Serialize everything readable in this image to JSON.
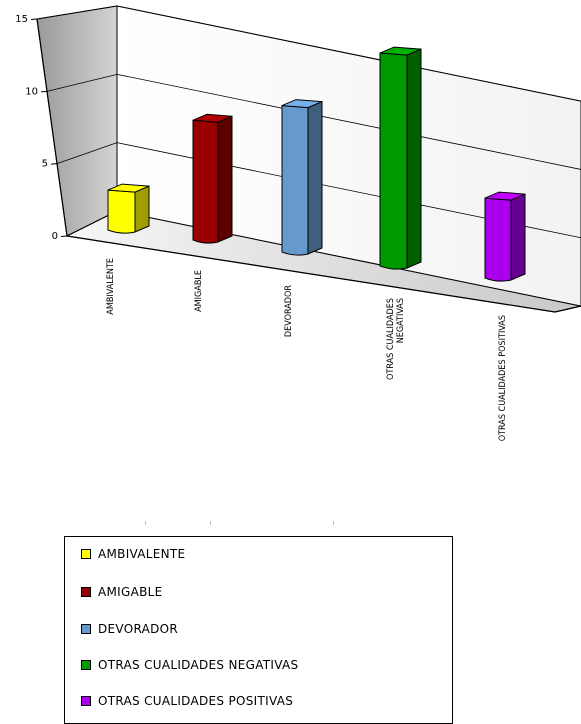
{
  "chart_data": {
    "type": "bar",
    "categories": [
      "AMBIVALENTE",
      "AMIGABLE",
      "DEVORADOR",
      "OTRAS CUALIDADES NEGATIVAS",
      "OTRAS CUALIDADES POSITIVAS"
    ],
    "category_tick_labels": [
      [
        "AMBIVALENTE"
      ],
      [
        "AMIGABLE"
      ],
      [
        "DEVORADOR"
      ],
      [
        "OTRAS CUALIDADES",
        "NEGATIVAS"
      ],
      [
        "OTRAS CUALIDADES POSITIVAS"
      ]
    ],
    "values": [
      3,
      9,
      11,
      16,
      6
    ],
    "colors": [
      "#ffff00",
      "#990000",
      "#6699cc",
      "#009900",
      "#aa00ee"
    ],
    "ylim": [
      0,
      15
    ],
    "yticks": [
      0,
      5,
      10,
      15
    ],
    "grid": true,
    "three_d": true,
    "legend": "bottom",
    "title": "",
    "xlabel": "",
    "ylabel": ""
  },
  "legend": {
    "items": [
      {
        "label": "AMBIVALENTE",
        "color": "#ffff00"
      },
      {
        "label": "AMIGABLE",
        "color": "#990000"
      },
      {
        "label": "DEVORADOR",
        "color": "#6699cc"
      },
      {
        "label": "OTRAS CUALIDADES NEGATIVAS",
        "color": "#009900"
      },
      {
        "label": "OTRAS CUALIDADES POSITIVAS",
        "color": "#aa00ee"
      }
    ]
  }
}
